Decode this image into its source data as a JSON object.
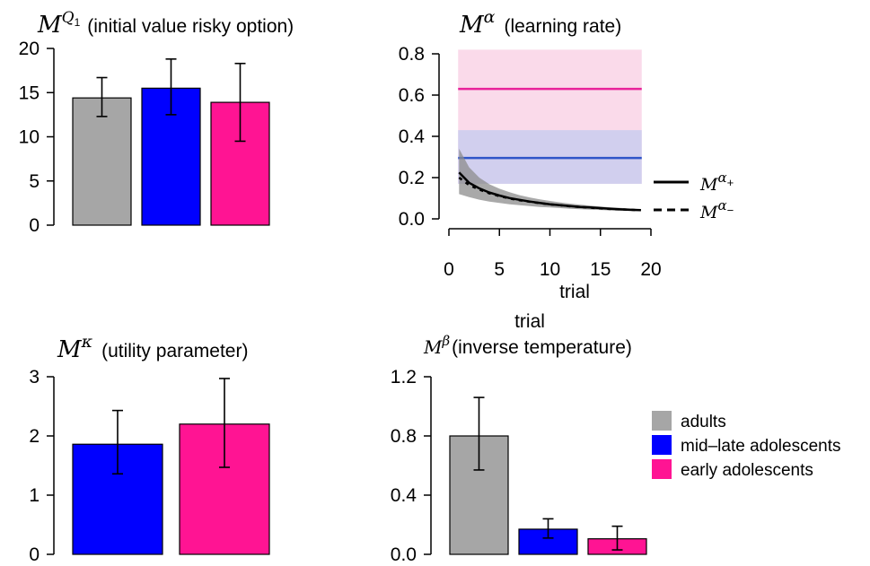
{
  "colors": {
    "adults": "#a6a6a6",
    "mid_late": "#0000ff",
    "early": "#ff1493",
    "alpha_mid_line": "#2f55c8",
    "alpha_mid_band": "#c9cdee",
    "alpha_early_line": "#e8229a",
    "alpha_early_band": "#f9d3e6",
    "alpha_adult_band": "#8c8c8c"
  },
  "chart_data": [
    {
      "id": "q1",
      "type": "bar",
      "title_symbol": "M",
      "title_superscript": "Q",
      "title_sub": "1",
      "title_text": "(initial value risky option)",
      "ylim": [
        0,
        20
      ],
      "yticks": [
        "0",
        "5",
        "10",
        "15",
        "20"
      ],
      "series": [
        {
          "group": "adults",
          "value": 14.4,
          "err_low": 12.3,
          "err_high": 16.7
        },
        {
          "group": "mid_late",
          "value": 15.5,
          "err_low": 12.5,
          "err_high": 18.8
        },
        {
          "group": "early",
          "value": 13.9,
          "err_low": 9.5,
          "err_high": 18.3
        }
      ]
    },
    {
      "id": "alpha",
      "type": "line",
      "title_symbol": "M",
      "title_superscript": "α",
      "title_text": "(learning rate)",
      "xlabel": "trial",
      "xlim": [
        0,
        20
      ],
      "ylim": [
        0,
        0.8
      ],
      "xticks": [
        "0",
        "5",
        "10",
        "15",
        "20"
      ],
      "yticks": [
        "0.0",
        "0.2",
        "0.4",
        "0.6",
        "0.8"
      ],
      "bands": [
        {
          "group": "early",
          "y_low": 0.17,
          "y_high": 0.82,
          "mean": 0.63,
          "x_from": 1,
          "x_to": 19
        },
        {
          "group": "mid_late",
          "y_low": 0.17,
          "y_high": 0.43,
          "mean": 0.295,
          "x_from": 1,
          "x_to": 19
        }
      ],
      "adult_curves": {
        "x": [
          1,
          2,
          3,
          4,
          5,
          6,
          7,
          8,
          9,
          10,
          11,
          12,
          13,
          14,
          15,
          16,
          17,
          18,
          19
        ],
        "alpha_plus": [
          0.225,
          0.175,
          0.148,
          0.128,
          0.113,
          0.101,
          0.092,
          0.084,
          0.077,
          0.071,
          0.066,
          0.062,
          0.058,
          0.055,
          0.052,
          0.049,
          0.046,
          0.044,
          0.042
        ],
        "alpha_minus": [
          0.2,
          0.164,
          0.142,
          0.124,
          0.11,
          0.099,
          0.09,
          0.083,
          0.076,
          0.07,
          0.066,
          0.061,
          0.058,
          0.054,
          0.051,
          0.048,
          0.046,
          0.044,
          0.042
        ],
        "band_low": [
          0.12,
          0.105,
          0.093,
          0.084,
          0.077,
          0.071,
          0.066,
          0.062,
          0.058,
          0.055,
          0.052,
          0.049,
          0.047,
          0.045,
          0.043,
          0.041,
          0.039,
          0.038,
          0.037
        ],
        "band_high": [
          0.34,
          0.25,
          0.2,
          0.168,
          0.146,
          0.129,
          0.115,
          0.104,
          0.095,
          0.087,
          0.08,
          0.074,
          0.069,
          0.064,
          0.06,
          0.056,
          0.053,
          0.05,
          0.047
        ]
      },
      "legend": [
        {
          "symbol": "M",
          "superscript": "α",
          "sub": "+",
          "style": "solid"
        },
        {
          "symbol": "M",
          "superscript": "α",
          "sub": "−",
          "style": "dashed"
        }
      ]
    },
    {
      "id": "kappa",
      "type": "bar",
      "title_symbol": "M",
      "title_superscript": "κ",
      "title_text": "(utility parameter)",
      "ylim": [
        0,
        3
      ],
      "yticks": [
        "0",
        "1",
        "2",
        "3"
      ],
      "series": [
        {
          "group": "mid_late",
          "value": 1.86,
          "err_low": 1.36,
          "err_high": 2.43
        },
        {
          "group": "early",
          "value": 2.2,
          "err_low": 1.47,
          "err_high": 2.97
        }
      ]
    },
    {
      "id": "beta",
      "type": "bar",
      "title_symbol": "M",
      "title_superscript": "β",
      "title_text": "(inverse temperature)",
      "extra_label": "trial",
      "ylim": [
        0,
        1.2
      ],
      "yticks": [
        "0.0",
        "0.4",
        "0.8",
        "1.2"
      ],
      "series": [
        {
          "group": "adults",
          "value": 0.8,
          "err_low": 0.57,
          "err_high": 1.06
        },
        {
          "group": "mid_late",
          "value": 0.17,
          "err_low": 0.11,
          "err_high": 0.24
        },
        {
          "group": "early",
          "value": 0.105,
          "err_low": 0.03,
          "err_high": 0.19
        }
      ]
    }
  ],
  "legend": [
    {
      "group": "adults",
      "label": "adults"
    },
    {
      "group": "mid_late",
      "label": "mid–late adolescents"
    },
    {
      "group": "early",
      "label": "early adolescents"
    }
  ]
}
